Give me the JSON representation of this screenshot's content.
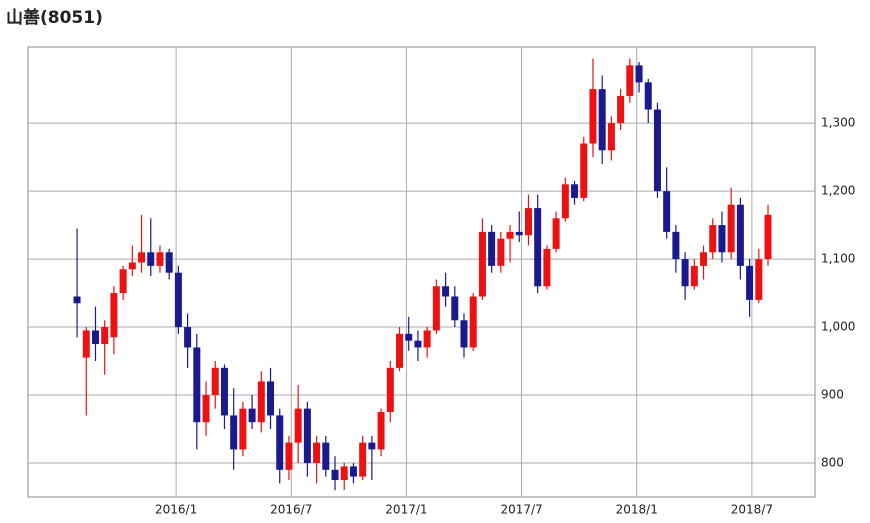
{
  "chart_data": {
    "type": "candlestick",
    "title": "山善(8051)",
    "x": [
      2015.57,
      2015.61,
      2015.65,
      2015.69,
      2015.73,
      2015.77,
      2015.81,
      2015.85,
      2015.89,
      2015.93,
      2015.97,
      2016.01,
      2016.05,
      2016.09,
      2016.13,
      2016.17,
      2016.21,
      2016.25,
      2016.29,
      2016.33,
      2016.37,
      2016.41,
      2016.45,
      2016.49,
      2016.53,
      2016.57,
      2016.61,
      2016.65,
      2016.69,
      2016.73,
      2016.77,
      2016.81,
      2016.85,
      2016.89,
      2016.93,
      2016.97,
      2017.01,
      2017.05,
      2017.09,
      2017.13,
      2017.17,
      2017.21,
      2017.25,
      2017.29,
      2017.33,
      2017.37,
      2017.41,
      2017.45,
      2017.49,
      2017.53,
      2017.57,
      2017.61,
      2017.65,
      2017.69,
      2017.73,
      2017.77,
      2017.81,
      2017.85,
      2017.89,
      2017.93,
      2017.97,
      2018.01,
      2018.05,
      2018.09,
      2018.13,
      2018.17,
      2018.21,
      2018.25,
      2018.29,
      2018.33,
      2018.37,
      2018.41,
      2018.45,
      2018.49,
      2018.53,
      2018.57
    ],
    "open": [
      1045,
      955,
      995,
      975,
      985,
      1050,
      1085,
      1095,
      1110,
      1090,
      1110,
      1080,
      1000,
      970,
      860,
      900,
      940,
      870,
      820,
      880,
      860,
      920,
      870,
      790,
      830,
      880,
      800,
      830,
      790,
      775,
      795,
      780,
      830,
      820,
      875,
      940,
      990,
      980,
      970,
      995,
      1060,
      1045,
      1010,
      970,
      1045,
      1140,
      1090,
      1130,
      1140,
      1135,
      1175,
      1060,
      1115,
      1160,
      1210,
      1190,
      1270,
      1350,
      1260,
      1300,
      1340,
      1385,
      1360,
      1320,
      1200,
      1140,
      1100,
      1060,
      1090,
      1110,
      1150,
      1110,
      1180,
      1090,
      1040,
      1100
    ],
    "high": [
      1145,
      1000,
      1030,
      1010,
      1060,
      1090,
      1120,
      1165,
      1160,
      1120,
      1115,
      1090,
      1020,
      990,
      920,
      950,
      945,
      910,
      890,
      900,
      935,
      940,
      880,
      840,
      915,
      890,
      840,
      840,
      810,
      800,
      800,
      840,
      840,
      880,
      950,
      1000,
      1015,
      995,
      1000,
      1070,
      1080,
      1060,
      1020,
      1050,
      1160,
      1150,
      1140,
      1150,
      1170,
      1195,
      1195,
      1120,
      1170,
      1220,
      1215,
      1280,
      1395,
      1370,
      1310,
      1350,
      1395,
      1390,
      1365,
      1330,
      1235,
      1150,
      1110,
      1100,
      1120,
      1160,
      1170,
      1205,
      1190,
      1100,
      1115,
      1180
    ],
    "low": [
      985,
      870,
      950,
      930,
      960,
      1040,
      1075,
      1080,
      1075,
      1080,
      1070,
      990,
      940,
      820,
      840,
      880,
      850,
      790,
      810,
      850,
      845,
      850,
      770,
      775,
      800,
      780,
      770,
      780,
      760,
      760,
      770,
      775,
      775,
      810,
      860,
      935,
      965,
      950,
      955,
      990,
      1030,
      1000,
      955,
      965,
      1040,
      1080,
      1080,
      1095,
      1125,
      1120,
      1050,
      1055,
      1110,
      1155,
      1180,
      1185,
      1250,
      1240,
      1245,
      1290,
      1330,
      1345,
      1300,
      1190,
      1130,
      1080,
      1040,
      1055,
      1070,
      1100,
      1095,
      1100,
      1070,
      1015,
      1035,
      1090
    ],
    "close": [
      1035,
      995,
      975,
      1000,
      1050,
      1085,
      1095,
      1110,
      1090,
      1110,
      1080,
      1000,
      970,
      860,
      900,
      940,
      870,
      820,
      880,
      860,
      920,
      870,
      790,
      830,
      880,
      800,
      830,
      790,
      775,
      795,
      780,
      830,
      820,
      875,
      940,
      990,
      980,
      970,
      995,
      1060,
      1045,
      1010,
      970,
      1045,
      1140,
      1090,
      1130,
      1140,
      1135,
      1175,
      1060,
      1115,
      1160,
      1210,
      1190,
      1270,
      1350,
      1260,
      1300,
      1340,
      1385,
      1360,
      1320,
      1200,
      1140,
      1100,
      1060,
      1090,
      1110,
      1150,
      1110,
      1180,
      1090,
      1040,
      1100,
      1165
    ],
    "up_color": "#ee1111",
    "down_color": "#1a1a8f",
    "xlim": [
      2015.357,
      2018.774
    ],
    "xticks": [
      {
        "value": 2016.0,
        "label": "2016/1"
      },
      {
        "value": 2016.5,
        "label": "2016/7"
      },
      {
        "value": 2017.0,
        "label": "2017/1"
      },
      {
        "value": 2017.5,
        "label": "2017/7"
      },
      {
        "value": 2018.0,
        "label": "2018/1"
      },
      {
        "value": 2018.5,
        "label": "2018/7"
      }
    ],
    "ylim": [
      750,
      1412
    ],
    "yticks": [
      800,
      900,
      {
        "value": 1000,
        "label": "1,000"
      },
      {
        "value": 1100,
        "label": "1,100"
      },
      {
        "value": 1200,
        "label": "1,200"
      },
      {
        "value": 1300,
        "label": "1,300"
      }
    ],
    "grid": true
  }
}
